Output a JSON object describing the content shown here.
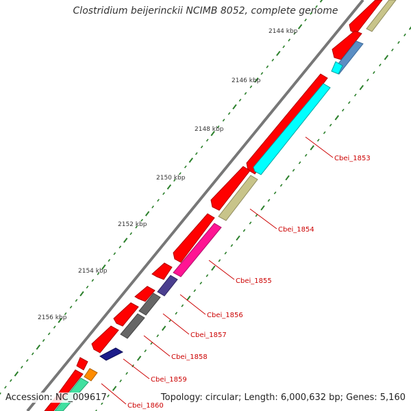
{
  "title": "Clostridium beijerinckii NCIMB 8052, complete genome",
  "footer": {
    "accession": "Accession: NC_009617",
    "topology": "Topology: circular; Length: 6,000,632 bp; Genes: 5,160"
  },
  "ticks": [
    {
      "label": "2144 kbp"
    },
    {
      "label": "2146 kbp"
    },
    {
      "label": "2148 kbp"
    },
    {
      "label": "2150 kbp"
    },
    {
      "label": "2152 kbp"
    },
    {
      "label": "2154 kbp"
    },
    {
      "label": "2156 kbp"
    }
  ],
  "genes": [
    {
      "label": "Cbei_1853"
    },
    {
      "label": "Cbei_1854"
    },
    {
      "label": "Cbei_1855"
    },
    {
      "label": "Cbei_1856"
    },
    {
      "label": "Cbei_1857"
    },
    {
      "label": "Cbei_1858"
    },
    {
      "label": "Cbei_1859"
    },
    {
      "label": "Cbei_1860"
    }
  ],
  "colors": {
    "backbone": "#777777",
    "cds": "#ff0000",
    "tick_marks": "#2a7f2a",
    "label_text": "#cc0000",
    "cog_colors": [
      "#00ffff",
      "#c8c48a",
      "#ff1493",
      "#4b3f8f",
      "#666666",
      "#1c1c8a",
      "#ff8c00",
      "#40e0a0",
      "#5b8ec4"
    ]
  }
}
